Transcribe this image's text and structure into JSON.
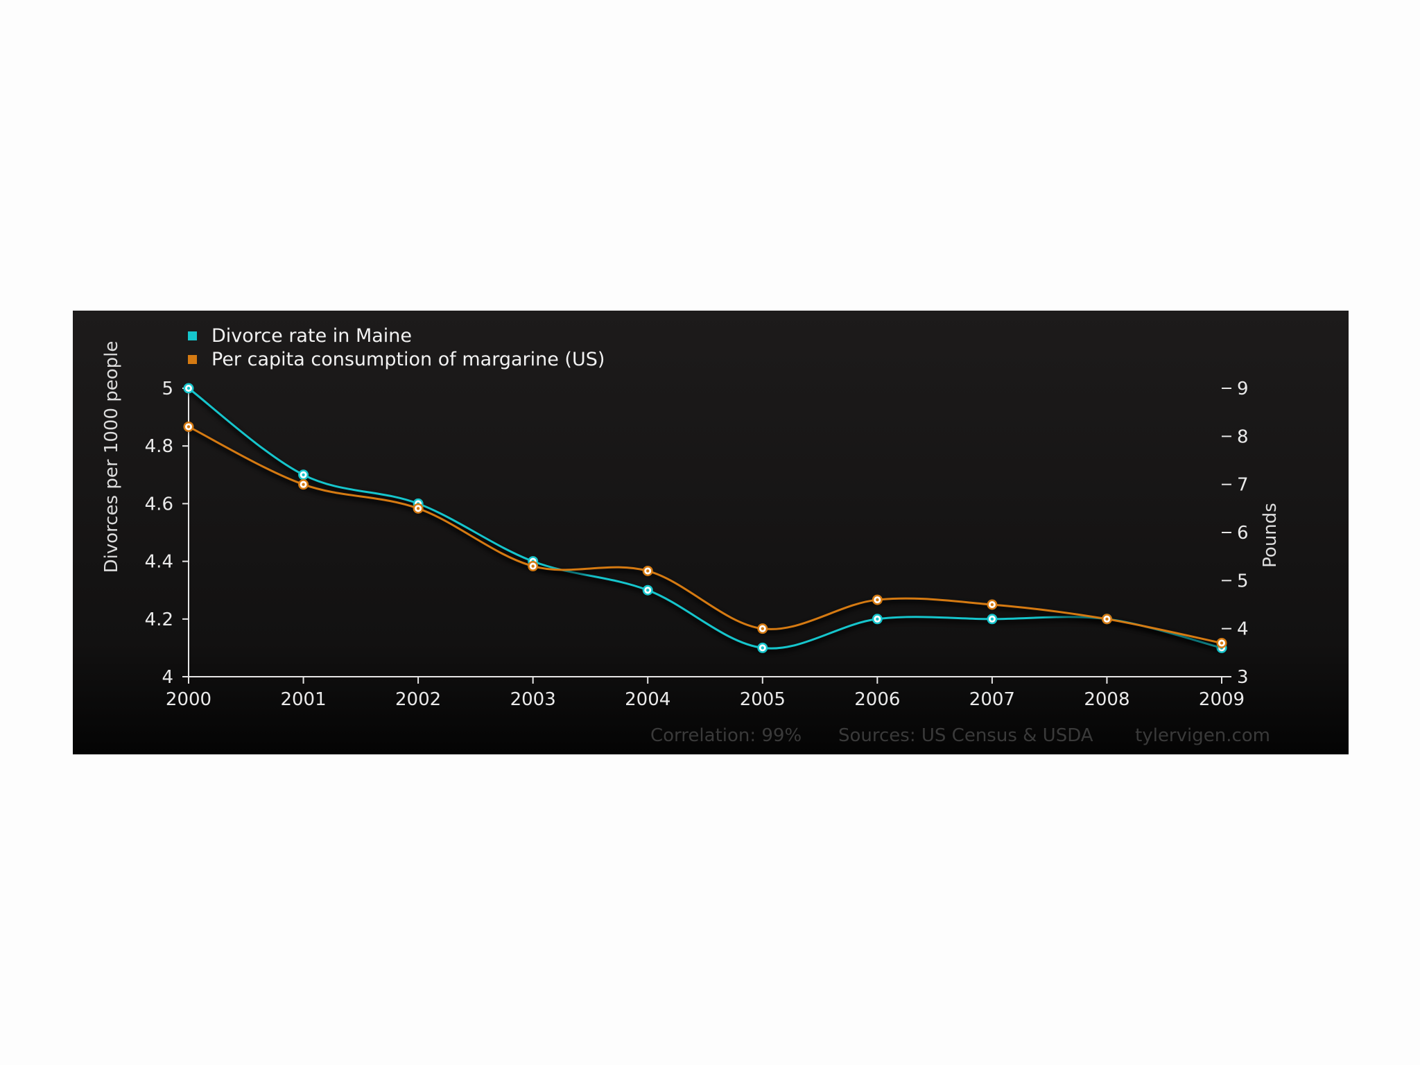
{
  "chart_data": {
    "type": "line",
    "x": [
      2000,
      2001,
      2002,
      2003,
      2004,
      2005,
      2006,
      2007,
      2008,
      2009
    ],
    "series": [
      {
        "name": "Divorce rate in Maine",
        "axis": "left",
        "color": "#16c5cc",
        "values": [
          5.0,
          4.7,
          4.6,
          4.4,
          4.3,
          4.1,
          4.2,
          4.2,
          4.2,
          4.1
        ]
      },
      {
        "name": "Per capita consumption of margarine (US)",
        "axis": "right",
        "color": "#d57a12",
        "values": [
          8.2,
          7.0,
          6.5,
          5.3,
          5.2,
          4.0,
          4.6,
          4.5,
          4.2,
          3.7
        ]
      }
    ],
    "ylabel": "Divorces per 1000 people",
    "ylabel_right": "Pounds",
    "ylim": [
      4,
      5
    ],
    "ylim_right": [
      3,
      9
    ],
    "yticks": [
      "4",
      "4.2",
      "4.4",
      "4.6",
      "4.8",
      "5"
    ],
    "yticks_right": [
      "3",
      "4",
      "5",
      "6",
      "7",
      "8",
      "9"
    ],
    "xticks": [
      "2000",
      "2001",
      "2002",
      "2003",
      "2004",
      "2005",
      "2006",
      "2007",
      "2008",
      "2009"
    ],
    "grid": false,
    "legend_position": "top-left",
    "footer": {
      "correlation": "Correlation: 99%",
      "sources": "Sources: US Census & USDA",
      "site": "tylervigen.com"
    }
  }
}
